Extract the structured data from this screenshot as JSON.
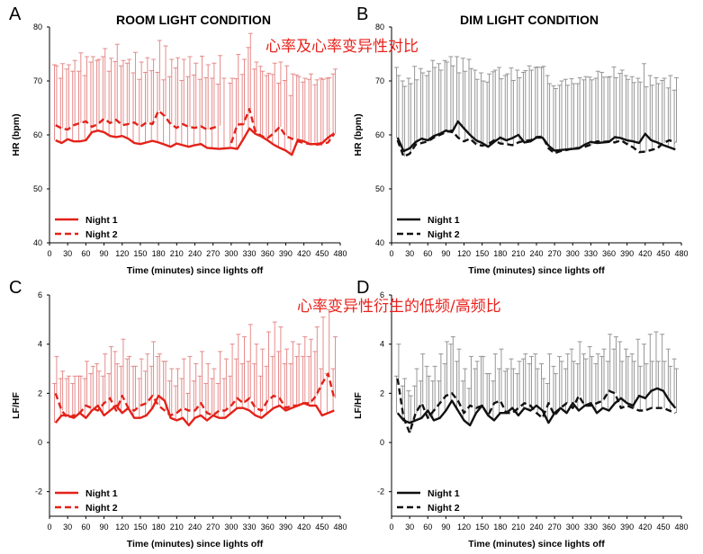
{
  "colors": {
    "red": "#e32219",
    "black": "#111111",
    "annotation": "#e8231d",
    "err_red": "#e37f7f",
    "err_gray": "#8c8c8c"
  },
  "annotations": [
    "心率及心率变异性对比",
    "心率变异性衍生的低频/高频比"
  ],
  "chart_data": [
    {
      "panel": "A",
      "type": "line",
      "title": "ROOM LIGHT CONDITION",
      "xlabel": "Time (minutes) since lights off",
      "ylabel": "HR (bpm)",
      "xlim": [
        0,
        480
      ],
      "ylim": [
        40,
        80
      ],
      "xticks": [
        "0",
        "30",
        "60",
        "90",
        "120",
        "150",
        "180",
        "210",
        "240",
        "270",
        "300",
        "330",
        "360",
        "390",
        "420",
        "450",
        "480"
      ],
      "yticks": [
        "40",
        "50",
        "60",
        "70",
        "80"
      ],
      "x": [
        10,
        20,
        30,
        40,
        50,
        60,
        70,
        80,
        90,
        100,
        110,
        120,
        130,
        140,
        150,
        160,
        170,
        180,
        190,
        200,
        210,
        220,
        230,
        240,
        250,
        260,
        270,
        280,
        290,
        300,
        310,
        320,
        330,
        340,
        350,
        360,
        370,
        380,
        390,
        400,
        410,
        420,
        430,
        440,
        450,
        460,
        470
      ],
      "legend_position": "bottom-left",
      "grid": false,
      "series": [
        {
          "name": "Night 1",
          "style": "solid",
          "color": "#e32219",
          "values": [
            59,
            58.5,
            59.2,
            58.8,
            58.8,
            59,
            60.5,
            60.8,
            60.5,
            59.8,
            59.6,
            59.8,
            59.3,
            58.5,
            58.3,
            58.6,
            58.9,
            58.6,
            58.2,
            57.8,
            58.4,
            58.1,
            57.8,
            58.1,
            58.3,
            57.6,
            57.5,
            57.4,
            57.5,
            57.6,
            57.4,
            59.2,
            61.2,
            60.2,
            59.7,
            59,
            58.2,
            57.6,
            57.1,
            56.3,
            59.1,
            58.8,
            58.3,
            58.3,
            58.5,
            59.5,
            60.3
          ],
          "errors": [
            14,
            12,
            13,
            13,
            13,
            12,
            13,
            13,
            14,
            12,
            14,
            13,
            14,
            13,
            12,
            13,
            13,
            13,
            12,
            13,
            14,
            12,
            13,
            13,
            12,
            13,
            13,
            12,
            13,
            12,
            13,
            12,
            15,
            12,
            13,
            12,
            13,
            12,
            13,
            11,
            12,
            11,
            12,
            11,
            12,
            11,
            11
          ]
        },
        {
          "name": "Night 2",
          "style": "dashed",
          "color": "#e32219",
          "values": [
            61.8,
            61.2,
            61,
            61.8,
            62.2,
            62.5,
            61.5,
            62,
            63,
            62.2,
            62.8,
            61.8,
            62,
            62.3,
            61.5,
            62.3,
            62,
            64.5,
            63.5,
            62,
            61.3,
            62,
            61.5,
            61.3,
            61.6,
            61,
            61.3,
            61.7,
            null,
            58.5,
            61.9,
            62,
            64.8,
            60.5,
            59.8,
            59.4,
            60.3,
            61.5,
            59.8,
            59.3,
            58.8,
            58.5,
            58.3,
            58.2,
            58.3,
            58.6,
            60.2
          ],
          "errors": [
            11,
            12,
            12,
            12,
            13,
            12,
            13,
            12,
            13,
            12,
            14,
            12,
            12,
            13,
            12,
            12,
            12,
            13,
            13,
            12,
            13,
            12,
            13,
            12,
            13,
            12,
            12,
            13,
            null,
            12,
            13,
            12,
            14,
            13,
            12,
            12,
            13,
            12,
            13,
            12,
            12,
            12,
            13,
            12,
            12,
            12,
            12
          ]
        }
      ]
    },
    {
      "panel": "B",
      "type": "line",
      "title": "DIM LIGHT CONDITION",
      "xlabel": "Time (minutes) since lights off",
      "ylabel": "HR (bpm)",
      "xlim": [
        0,
        480
      ],
      "ylim": [
        40,
        80
      ],
      "xticks": [
        "0",
        "30",
        "60",
        "90",
        "120",
        "150",
        "180",
        "210",
        "240",
        "270",
        "300",
        "330",
        "360",
        "390",
        "420",
        "450",
        "480"
      ],
      "yticks": [
        "40",
        "50",
        "60",
        "70",
        "80"
      ],
      "x": [
        10,
        20,
        30,
        40,
        50,
        60,
        70,
        80,
        90,
        100,
        110,
        120,
        130,
        140,
        150,
        160,
        170,
        180,
        190,
        200,
        210,
        220,
        230,
        240,
        250,
        260,
        270,
        280,
        290,
        300,
        310,
        320,
        330,
        340,
        350,
        360,
        370,
        380,
        390,
        400,
        410,
        420,
        430,
        440,
        450,
        460,
        470
      ],
      "legend_position": "bottom-left",
      "grid": false,
      "series": [
        {
          "name": "Night 1",
          "style": "solid",
          "color": "#111111",
          "values": [
            59.5,
            57,
            57.5,
            58.7,
            59.3,
            59,
            59.8,
            60.2,
            60.8,
            60.5,
            62.5,
            61.2,
            60,
            59,
            58.5,
            57.8,
            58.7,
            59.5,
            59,
            59.4,
            60,
            58.6,
            58.8,
            59.5,
            59.5,
            58,
            57.1,
            57.2,
            57.3,
            57.4,
            57.5,
            58.2,
            58.7,
            58.5,
            58.6,
            58.7,
            59.6,
            59.4,
            59,
            58.8,
            58.5,
            60.2,
            59,
            58.6,
            58.1,
            57.7,
            57.3
          ],
          "errors": [
            13,
            13,
            13,
            14,
            13,
            12,
            14,
            13,
            13,
            14,
            12,
            13,
            14,
            13,
            13,
            12,
            13,
            13,
            12,
            13,
            12,
            13,
            14,
            13,
            13,
            13,
            12,
            12,
            13,
            13,
            12,
            12,
            12,
            12,
            13,
            12,
            13,
            12,
            12,
            12,
            12,
            13,
            12,
            12,
            12,
            11,
            11
          ]
        },
        {
          "name": "Night 2",
          "style": "dashed",
          "color": "#111111",
          "values": [
            59,
            56,
            56.5,
            58.2,
            58.5,
            58.8,
            59.5,
            60,
            60.5,
            60.8,
            59.5,
            58.8,
            59.3,
            58.3,
            58,
            58.3,
            59,
            58.4,
            58.3,
            58.1,
            58.6,
            58.9,
            59,
            59.6,
            59.7,
            57.5,
            56.6,
            57,
            57.2,
            57.5,
            57.6,
            57.8,
            58.2,
            58.8,
            58.7,
            58.8,
            58.6,
            59,
            58.3,
            57.7,
            56.8,
            56.9,
            57.2,
            57.5,
            58.5,
            59,
            58.6
          ],
          "errors": [
            12,
            13,
            13,
            12,
            13,
            13,
            13,
            12,
            13,
            12,
            12,
            13,
            13,
            12,
            12,
            13,
            13,
            12,
            13,
            12,
            12,
            13,
            13,
            13,
            13,
            12,
            12,
            13,
            12,
            12,
            13,
            13,
            12,
            13,
            12,
            12,
            12,
            13,
            12,
            12,
            13,
            12,
            12,
            12,
            12,
            12,
            12
          ]
        }
      ]
    },
    {
      "panel": "C",
      "type": "line",
      "title": "",
      "xlabel": "Time (minutes) since lights off",
      "ylabel": "LF/HF",
      "xlim": [
        0,
        480
      ],
      "ylim": [
        -3,
        6
      ],
      "xticks": [
        "0",
        "30",
        "60",
        "90",
        "120",
        "150",
        "180",
        "210",
        "240",
        "270",
        "300",
        "330",
        "360",
        "390",
        "420",
        "450",
        "480"
      ],
      "yticks": [
        "-2",
        "0",
        "2",
        "4",
        "6"
      ],
      "x": [
        10,
        20,
        30,
        40,
        50,
        60,
        70,
        80,
        90,
        100,
        110,
        120,
        130,
        140,
        150,
        160,
        170,
        180,
        190,
        200,
        210,
        220,
        230,
        240,
        250,
        260,
        270,
        280,
        290,
        300,
        310,
        320,
        330,
        340,
        350,
        360,
        370,
        380,
        390,
        400,
        410,
        420,
        430,
        440,
        450,
        460,
        470
      ],
      "legend_position": "bottom-left",
      "grid": false,
      "series": [
        {
          "name": "Night 1",
          "style": "solid",
          "color": "#e32219",
          "values": [
            0.8,
            1.1,
            1.1,
            1.0,
            1.2,
            1.0,
            1.3,
            1.5,
            1.1,
            1.3,
            1.5,
            1.2,
            1.4,
            1.0,
            1.0,
            1.1,
            1.4,
            1.9,
            1.7,
            1.0,
            0.9,
            1.0,
            0.7,
            1.0,
            1.1,
            0.9,
            1.1,
            1.0,
            1.0,
            1.2,
            1.4,
            1.4,
            1.3,
            1.1,
            1.0,
            1.2,
            1.4,
            1.5,
            1.3,
            1.4,
            1.5,
            1.6,
            1.5,
            1.5,
            1.1,
            1.2,
            1.3
          ],
          "errors": [
            1.6,
            1.5,
            1.5,
            1.4,
            1.5,
            1.6,
            1.5,
            1.7,
            1.6,
            1.5,
            2.2,
            1.9,
            2.0,
            2.1,
            1.6,
            1.8,
            1.7,
            1.6,
            1.6,
            1.5,
            1.4,
            1.6,
            1.3,
            1.5,
            1.6,
            1.5,
            1.5,
            1.4,
            1.6,
            1.5,
            2.0,
            1.8,
            2.0,
            2.1,
            1.7,
            1.9,
            2.1,
            2.2,
            1.9,
            1.8,
            2.0,
            1.9,
            2.0,
            2.2,
            1.9,
            1.6,
            1.7
          ]
        },
        {
          "name": "Night 2",
          "style": "dashed",
          "color": "#e32219",
          "values": [
            2.0,
            1.3,
            1.0,
            1.1,
            1.2,
            1.5,
            1.4,
            1.3,
            1.6,
            1.8,
            1.3,
            1.9,
            1.4,
            1.3,
            1.5,
            1.6,
            1.9,
            1.5,
            1.3,
            1.1,
            1.2,
            1.4,
            1.3,
            1.3,
            1.6,
            1.2,
            1.1,
            1.3,
            1.3,
            1.5,
            1.8,
            1.6,
            1.8,
            1.4,
            1.3,
            1.7,
            1.9,
            1.8,
            1.4,
            1.5,
            1.5,
            1.6,
            1.6,
            1.9,
            2.4,
            2.8,
            1.8
          ],
          "errors": [
            1.5,
            1.6,
            1.7,
            1.6,
            1.5,
            1.8,
            1.7,
            1.6,
            2.0,
            2.1,
            1.9,
            2.3,
            2.1,
            1.8,
            1.9,
            2.0,
            2.2,
            2.1,
            2.0,
            1.9,
            1.8,
            2.0,
            2.2,
            1.9,
            2.1,
            2.0,
            1.9,
            2.4,
            2.1,
            2.5,
            2.6,
            2.7,
            3.0,
            2.6,
            2.5,
            2.8,
            3.0,
            2.9,
            2.4,
            2.6,
            2.5,
            2.7,
            2.6,
            2.8,
            2.7,
            2.6,
            2.5
          ]
        }
      ]
    },
    {
      "panel": "D",
      "type": "line",
      "title": "",
      "xlabel": "Time (minutes) since lights off",
      "ylabel": "LF/HF",
      "xlim": [
        0,
        480
      ],
      "ylim": [
        -3,
        6
      ],
      "xticks": [
        "0",
        "30",
        "60",
        "90",
        "120",
        "150",
        "180",
        "210",
        "240",
        "270",
        "300",
        "330",
        "360",
        "390",
        "420",
        "450",
        "480"
      ],
      "yticks": [
        "-2",
        "0",
        "2",
        "4",
        "6"
      ],
      "x": [
        10,
        20,
        30,
        40,
        50,
        60,
        70,
        80,
        90,
        100,
        110,
        120,
        130,
        140,
        150,
        160,
        170,
        180,
        190,
        200,
        210,
        220,
        230,
        240,
        250,
        260,
        270,
        280,
        290,
        300,
        310,
        320,
        330,
        340,
        350,
        360,
        370,
        380,
        390,
        400,
        410,
        420,
        430,
        440,
        450,
        460,
        470
      ],
      "legend_position": "bottom-left",
      "grid": false,
      "series": [
        {
          "name": "Night 1",
          "style": "solid",
          "color": "#111111",
          "values": [
            1.2,
            0.9,
            0.8,
            0.9,
            1.0,
            1.3,
            0.9,
            1.0,
            1.3,
            1.7,
            1.3,
            0.9,
            0.7,
            1.2,
            1.5,
            1.1,
            0.9,
            1.2,
            1.2,
            1.4,
            1.1,
            1.4,
            1.3,
            1.5,
            1.3,
            0.8,
            1.2,
            1.4,
            1.2,
            1.6,
            1.3,
            1.5,
            1.6,
            1.2,
            1.4,
            1.3,
            1.6,
            1.8,
            1.6,
            1.5,
            1.9,
            1.8,
            2.1,
            2.2,
            2.1,
            1.7,
            1.4
          ],
          "errors": [
            1.5,
            1.4,
            1.3,
            1.4,
            1.5,
            1.8,
            1.6,
            1.5,
            1.9,
            2.3,
            2.0,
            1.6,
            1.5,
            1.8,
            2.0,
            1.7,
            1.6,
            1.8,
            1.7,
            2.0,
            1.7,
            2.0,
            1.9,
            2.1,
            1.9,
            1.6,
            1.9,
            2.1,
            1.8,
            2.2,
            1.9,
            2.1,
            2.3,
            2.0,
            2.1,
            2.0,
            2.2,
            2.3,
            2.2,
            2.1,
            2.3,
            2.2,
            2.3,
            2.3,
            2.3,
            2.1,
            2.0
          ]
        },
        {
          "name": "Night 2",
          "style": "dashed",
          "color": "#111111",
          "values": [
            2.6,
            1.0,
            0.4,
            1.2,
            1.6,
            1.0,
            1.3,
            1.6,
            1.9,
            2.0,
            1.7,
            1.2,
            1.5,
            1.4,
            1.5,
            1.1,
            1.6,
            1.7,
            1.2,
            1.2,
            1.4,
            1.6,
            1.5,
            1.2,
            1.0,
            1.6,
            1.1,
            1.4,
            1.6,
            1.4,
            1.9,
            1.5,
            1.5,
            1.6,
            1.7,
            2.1,
            2.0,
            1.4,
            1.5,
            1.4,
            1.3,
            1.3,
            1.4,
            1.4,
            1.4,
            1.3,
            1.2
          ],
          "errors": [
            1.4,
            1.6,
            1.5,
            1.8,
            2.0,
            1.7,
            1.8,
            2.0,
            2.2,
            2.3,
            2.1,
            1.8,
            2.0,
            1.9,
            2.0,
            1.7,
            2.0,
            2.1,
            1.8,
            1.8,
            1.9,
            2.0,
            2.0,
            1.8,
            1.6,
            2.0,
            1.7,
            1.9,
            2.0,
            1.9,
            2.2,
            1.9,
            2.0,
            2.0,
            2.1,
            2.3,
            2.3,
            1.9,
            2.0,
            1.9,
            1.8,
            1.9,
            1.9,
            1.9,
            1.9,
            1.8,
            1.8
          ]
        }
      ]
    }
  ]
}
